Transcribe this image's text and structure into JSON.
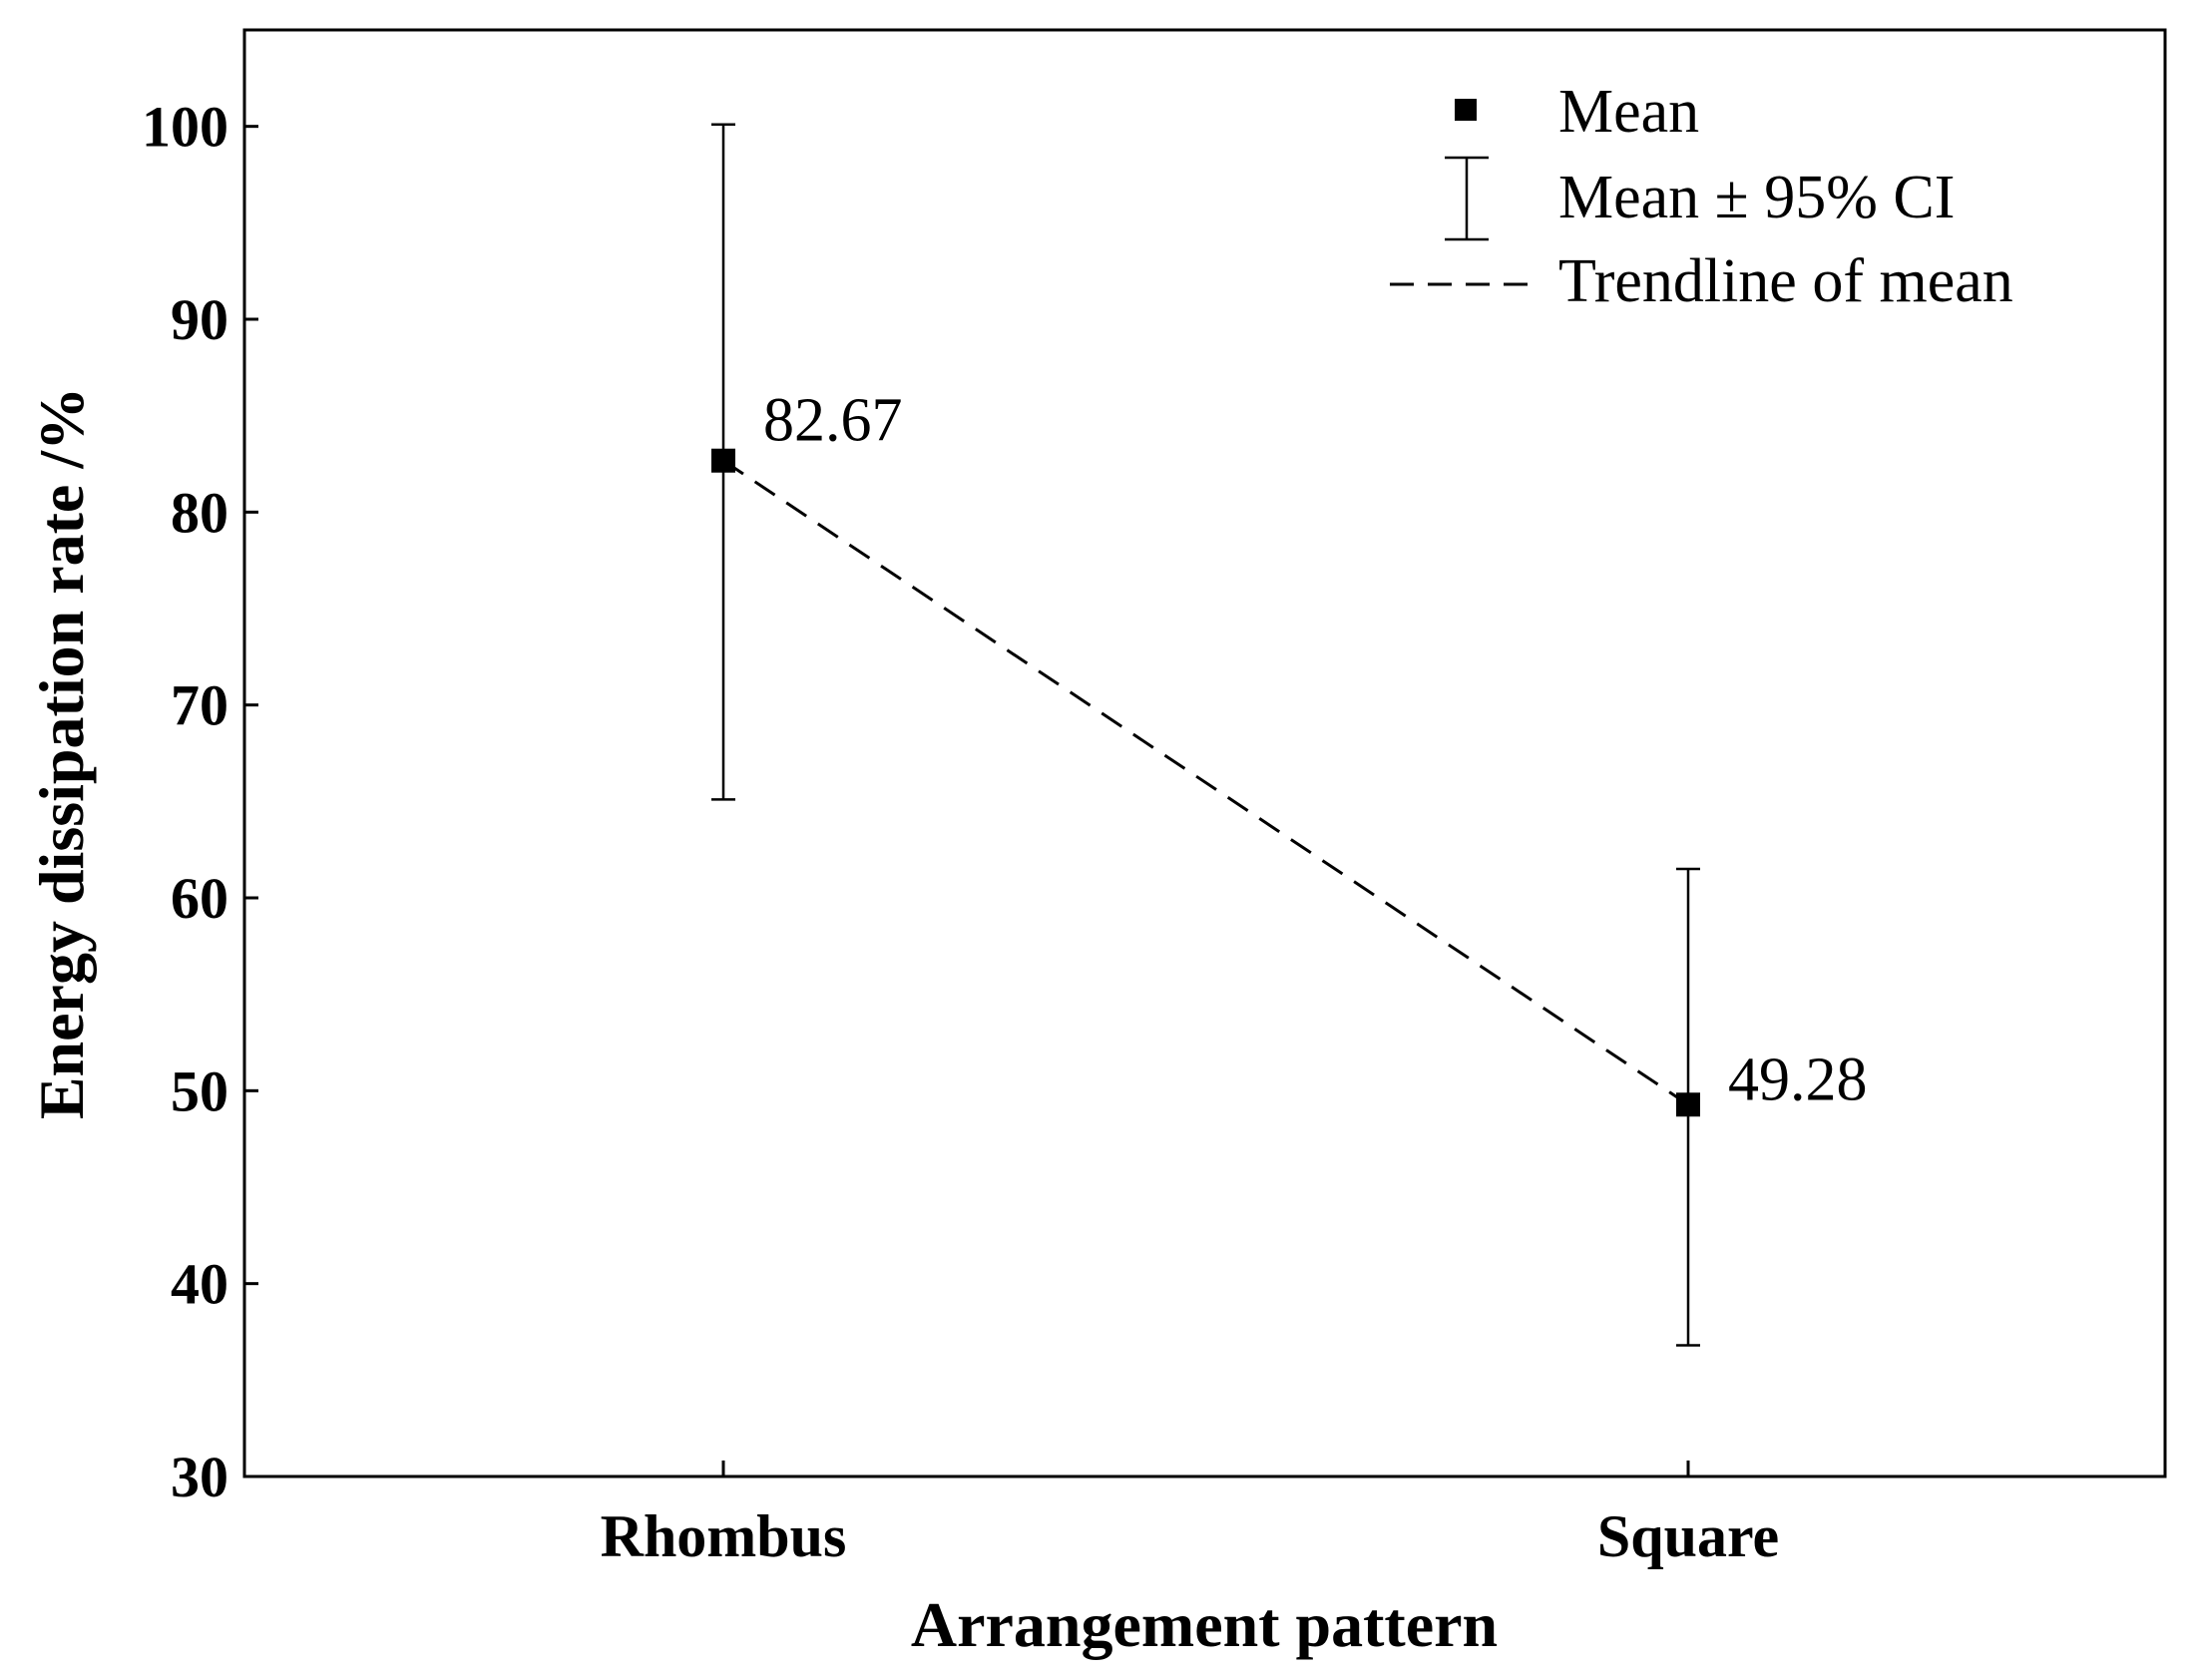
{
  "chart_data": {
    "type": "scatter",
    "xlabel": "Arrangement pattern",
    "ylabel": "Energy dissipation rate /%",
    "categories": [
      "Rhombus",
      "Square"
    ],
    "ylim": [
      30,
      105
    ],
    "yticks": [
      30,
      40,
      50,
      60,
      70,
      80,
      90,
      100
    ],
    "grid": false,
    "legend_position": "top-right",
    "legend": {
      "mean": "Mean",
      "ci": "Mean ± 95% CI",
      "trend": "Trendline of mean"
    },
    "series": [
      {
        "name": "Mean",
        "values": [
          82.67,
          49.28
        ],
        "ci_low": [
          65.1,
          36.8
        ],
        "ci_high": [
          100.1,
          61.5
        ],
        "labels": [
          "82.67",
          "49.28"
        ]
      }
    ],
    "trendline": true,
    "colors": {
      "marker": "#000000",
      "line": "#000000"
    }
  }
}
